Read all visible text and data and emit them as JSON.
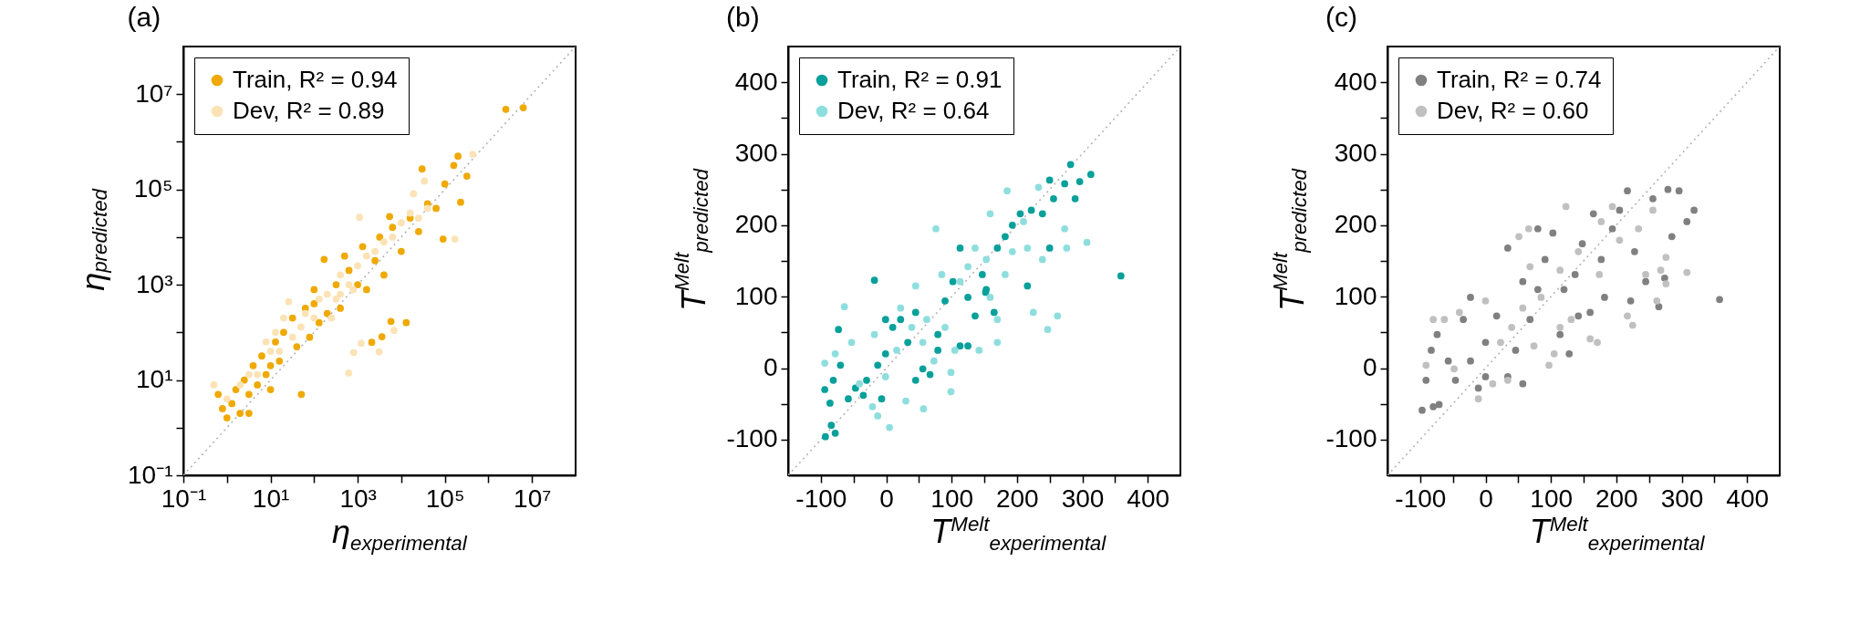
{
  "chart_data": [
    {
      "type": "scatter",
      "title": "(a)",
      "xlabel": "η$_{experimental}$",
      "ylabel": "η$_{predicted}$",
      "log": "xy",
      "legend": "top left",
      "grid": false,
      "xlim": [
        0.1,
        100000000.0
      ],
      "ylim": [
        0.1,
        100000000.0
      ],
      "xticks": [
        {
          "value": 0.1,
          "label": "10⁻¹"
        },
        {
          "value": 1,
          "label": null
        },
        {
          "value": 10,
          "label": "10¹"
        },
        {
          "value": 100,
          "label": null
        },
        {
          "value": 1000,
          "label": "10³"
        },
        {
          "value": 10000,
          "label": null
        },
        {
          "value": 100000,
          "label": "10⁵"
        },
        {
          "value": 1000000,
          "label": null
        },
        {
          "value": 10000000,
          "label": "10⁷"
        }
      ],
      "yticks": [
        {
          "value": 0.1,
          "label": "10⁻¹"
        },
        {
          "value": 1,
          "label": null
        },
        {
          "value": 10,
          "label": "10¹"
        },
        {
          "value": 100,
          "label": null
        },
        {
          "value": 1000,
          "label": "10³"
        },
        {
          "value": 10000,
          "label": null
        },
        {
          "value": 100000,
          "label": "10⁵"
        },
        {
          "value": 1000000,
          "label": null
        },
        {
          "value": 10000000,
          "label": "10⁷"
        }
      ],
      "series": [
        {
          "type": "line",
          "color": "#b4b4b4",
          "line_style": "dotted",
          "x": [
            0.1,
            100000000.0
          ],
          "values": [
            0.1,
            100000000.0
          ]
        },
        {
          "name": "Train, R² = 0.94",
          "color": "#efa900",
          "marker": "circle",
          "x": [
            0.63,
            0.79,
            1,
            1.3,
            1.6,
            2,
            2.5,
            3.2,
            4,
            5,
            6.3,
            7.9,
            10,
            13,
            16,
            20,
            51,
            32,
            40,
            63,
            79,
            100,
            130,
            170,
            200,
            320,
            400,
            630,
            1000,
            1300,
            1600,
            5800,
            13000,
            2100,
            3600,
            5400,
            91000,
            30000,
            230000,
            200000,
            320000,
            2500000,
            6300000,
            2500,
            4000,
            6300,
            10000,
            16000,
            25000,
            40000,
            63000,
            100000,
            160000,
            10,
            3.2,
            500,
            3200,
            100
          ],
          "values": [
            5,
            2.5,
            1.6,
            3.2,
            6.3,
            2,
            10,
            5,
            20,
            7.9,
            32,
            13,
            20,
            63,
            25,
            100,
            5,
            200,
            50,
            320,
            79,
            400,
            160,
            3400,
            250,
            1000,
            320,
            2000,
            1000,
            6300,
            790,
            170,
            160,
            62,
            81,
            27000,
            9100,
            270000,
            54000,
            500000,
            190000,
            4800000,
            5200000,
            3200,
            1600,
            16000,
            5000,
            25000,
            13000,
            50000,
            40000,
            130000,
            320000,
            6.3,
            2,
            4000,
            10000,
            790
          ]
        },
        {
          "name": "Dev, R² = 0.89",
          "color": "#fbe3b6",
          "marker": "circle",
          "x": [
            0.5,
            1,
            2,
            3.2,
            5,
            10,
            16,
            20,
            32,
            50,
            63,
            100,
            130,
            200,
            320,
            400,
            630,
            1000,
            1600,
            2500,
            4000,
            6300,
            10000,
            16000,
            25000,
            40000,
            7.9,
            13,
            250,
            400,
            790,
            1100,
            26,
            620,
            1200,
            3100,
            810,
            6800,
            34000,
            440000,
            170000,
            19000
          ],
          "values": [
            7.9,
            4,
            7.9,
            13,
            13,
            40,
            40,
            200,
            79,
            130,
            250,
            200,
            500,
            630,
            500,
            1600,
            1000,
            2500,
            4000,
            5000,
            7900,
            10000,
            20000,
            32000,
            25000,
            40000,
            63,
            100,
            200,
            630,
            790,
            26000,
            440,
            14,
            59,
            39,
            38,
            110,
            150000,
            550000,
            9100,
            81000
          ]
        }
      ]
    },
    {
      "type": "scatter",
      "title": "(b)",
      "xlabel": "T$^{Melt}$$_{experimental}$",
      "ylabel": "T$^{Melt}$$_{predicted}$",
      "legend": "top left",
      "grid": false,
      "xlim": [
        -150,
        450
      ],
      "ylim": [
        -150,
        450
      ],
      "xticks": [
        -100,
        {
          "value": -50,
          "label": null
        },
        0,
        {
          "value": 50,
          "label": null
        },
        100,
        {
          "value": 150,
          "label": null
        },
        200,
        {
          "value": 250,
          "label": null
        },
        300,
        {
          "value": 350,
          "label": null
        },
        400
      ],
      "yticks": [
        -100,
        {
          "value": -50,
          "label": null
        },
        0,
        {
          "value": 50,
          "label": null
        },
        100,
        {
          "value": 150,
          "label": null
        },
        200,
        {
          "value": 250,
          "label": null
        },
        300,
        {
          "value": 350,
          "label": null
        },
        400
      ],
      "series": [
        {
          "type": "line",
          "color": "#b4b4b4",
          "line_style": "dotted",
          "x": [
            -150,
            450
          ],
          "values": [
            -150,
            450
          ]
        },
        {
          "name": "Train, R² = 0.91",
          "color": "#07a09a",
          "marker": "circle",
          "x": [
            -93,
            -84,
            -78,
            -94,
            -86,
            -81,
            -73,
            -70,
            -58,
            -47,
            -35,
            -30,
            -18,
            -13,
            -7,
            -1,
            10,
            22,
            33,
            45,
            56,
            67,
            79,
            90,
            102,
            113,
            113,
            125,
            136,
            147,
            153,
            165,
            170,
            182,
            193,
            205,
            216,
            222,
            239,
            250,
            256,
            273,
            282,
            296,
            313,
            289,
            359,
            250,
            152,
            79,
            -1,
            45,
            125
          ],
          "values": [
            -96,
            -80,
            -91,
            -30,
            -49,
            -17,
            54,
            4,
            -43,
            -28,
            -38,
            -17,
            123,
            4,
            -43,
            20,
            57,
            68,
            36,
            78,
            -1,
            -9,
            47,
            94,
            121,
            31,
            168,
            99,
            73,
            131,
            110,
            78,
            168,
            184,
            200,
            216,
            115,
            221,
            216,
            168,
            237,
            258,
            285,
            261,
            271,
            237,
            129,
            263,
            106,
            25,
            68,
            -17,
            31
          ]
        },
        {
          "name": "Dev, R² = 0.64",
          "color": "#8fdede",
          "marker": "circle",
          "x": [
            -94,
            -64,
            -78,
            -53,
            -41,
            -21,
            -13,
            5,
            30,
            57,
            -18,
            -1,
            16,
            22,
            39,
            45,
            56,
            62,
            73,
            76,
            85,
            90,
            99,
            99,
            105,
            113,
            125,
            142,
            136,
            153,
            159,
            170,
            182,
            185,
            193,
            210,
            216,
            225,
            233,
            247,
            262,
            273,
            276,
            307,
            239,
            170,
            159
          ],
          "values": [
            7,
            86,
            20,
            36,
            -22,
            -54,
            -67,
            -83,
            -46,
            -57,
            47,
            -12,
            25,
            84,
            57,
            115,
            36,
            68,
            10,
            195,
            131,
            57,
            -6,
            -33,
            25,
            121,
            142,
            25,
            168,
            152,
            216,
            68,
            131,
            248,
            163,
            205,
            168,
            78,
            253,
            54,
            73,
            195,
            168,
            176,
            152,
            36,
            99
          ]
        }
      ]
    },
    {
      "type": "scatter",
      "title": "(c)",
      "xlabel": "T$^{Melt}$$_{experimental}$",
      "ylabel": "T$^{Melt}$$_{predicted}$",
      "legend": "top left",
      "grid": false,
      "xlim": [
        -150,
        450
      ],
      "ylim": [
        -150,
        450
      ],
      "xticks": [
        -100,
        {
          "value": -50,
          "label": null
        },
        0,
        {
          "value": 50,
          "label": null
        },
        100,
        {
          "value": 150,
          "label": null
        },
        200,
        {
          "value": 250,
          "label": null
        },
        300,
        {
          "value": 350,
          "label": null
        },
        400
      ],
      "yticks": [
        -100,
        {
          "value": -50,
          "label": null
        },
        0,
        {
          "value": 50,
          "label": null
        },
        100,
        {
          "value": 150,
          "label": null
        },
        200,
        {
          "value": 250,
          "label": null
        },
        300,
        {
          "value": 350,
          "label": null
        },
        400
      ],
      "series": [
        {
          "type": "line",
          "color": "#b4b4b4",
          "line_style": "dotted",
          "x": [
            -150,
            450
          ],
          "values": [
            -150,
            450
          ]
        },
        {
          "name": "Train, R² = 0.74",
          "color": "#808080",
          "marker": "circle",
          "x": [
            -97,
            -80,
            -71,
            -91,
            -83,
            -74,
            -57,
            -46,
            -34,
            -23,
            -11,
            0,
            0,
            17,
            34,
            34,
            46,
            57,
            57,
            68,
            80,
            91,
            103,
            114,
            120,
            128,
            137,
            148,
            160,
            165,
            177,
            182,
            194,
            205,
            217,
            222,
            228,
            245,
            256,
            265,
            279,
            296,
            285,
            308,
            319,
            274,
            358,
            142,
            80,
            -23
          ],
          "values": [
            -59,
            -54,
            -51,
            -17,
            25,
            47,
            10,
            -17,
            68,
            99,
            -28,
            -12,
            36,
            73,
            -12,
            168,
            25,
            -22,
            121,
            68,
            195,
            152,
            189,
            47,
            110,
            20,
            131,
            174,
            78,
            216,
            152,
            99,
            195,
            221,
            248,
            94,
            163,
            121,
            237,
            86,
            250,
            248,
            184,
            205,
            221,
            126,
            96,
            73,
            110,
            10
          ]
        },
        {
          "name": "Dev, R² = 0.60",
          "color": "#c0c0c0",
          "marker": "circle",
          "x": [
            -91,
            -80,
            -63,
            -40,
            -48,
            -11,
            11,
            34,
            0,
            23,
            40,
            51,
            57,
            66,
            74,
            85,
            97,
            105,
            114,
            123,
            131,
            142,
            160,
            171,
            174,
            177,
            194,
            205,
            217,
            225,
            234,
            245,
            256,
            268,
            276,
            276,
            308,
            262,
            68,
            114
          ],
          "values": [
            4,
            68,
            68,
            78,
            -1,
            -43,
            -22,
            -17,
            94,
            36,
            57,
            184,
            84,
            195,
            31,
            99,
            4,
            20,
            137,
            226,
            68,
            163,
            41,
            36,
            131,
            205,
            226,
            179,
            73,
            60,
            195,
            131,
            221,
            137,
            118,
            155,
            134,
            94,
            142,
            57
          ]
        }
      ]
    }
  ]
}
